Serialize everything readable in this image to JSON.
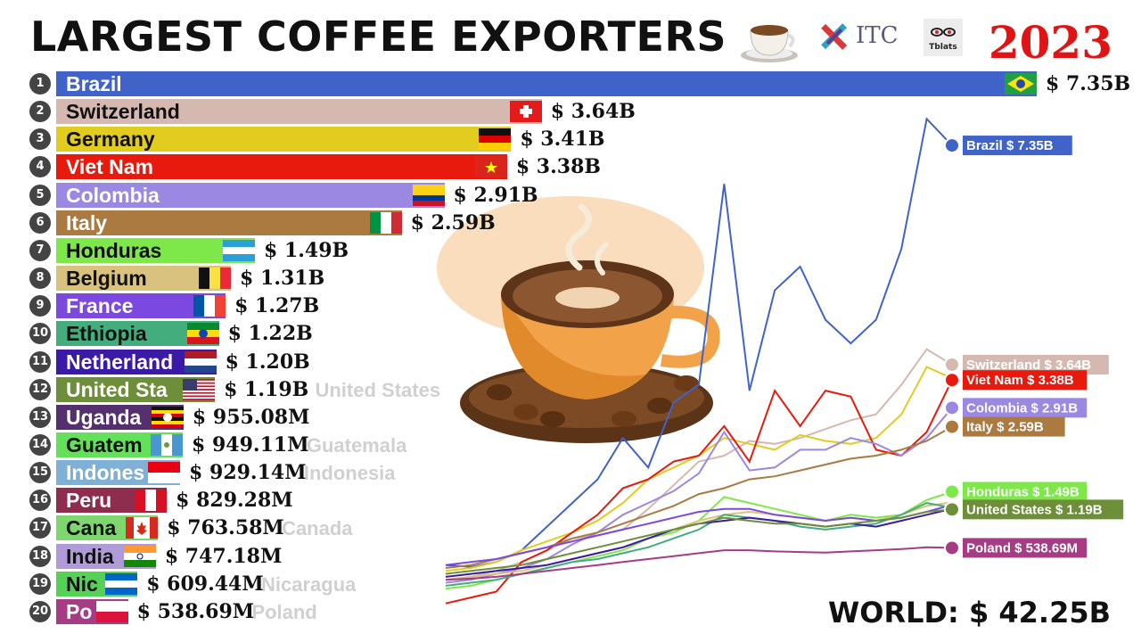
{
  "header": {
    "title": "LARGEST COFFEE EXPORTERS",
    "year": "2023"
  },
  "logos": {
    "itc": "ITC",
    "channel": "Tblats"
  },
  "world_total": "WORLD: $ 42.25B",
  "icons": [
    "coffee-cup-icon",
    "itc-logo-icon",
    "channel-logo-icon"
  ],
  "chart_data": [
    {
      "type": "bar",
      "orientation": "horizontal",
      "title": "LARGEST COFFEE EXPORTERS",
      "categories": [
        "Brazil",
        "Switzerland",
        "Germany",
        "Viet Nam",
        "Colombia",
        "Italy",
        "Honduras",
        "Belgium",
        "France",
        "Ethiopia",
        "Netherland",
        "United Sta",
        "Uganda",
        "Guatem",
        "Indones",
        "Peru",
        "Cana",
        "India",
        "Nic",
        "Po"
      ],
      "values": [
        7.35,
        3.64,
        3.41,
        3.38,
        2.91,
        2.59,
        1.49,
        1.31,
        1.27,
        1.22,
        1.2,
        1.19,
        0.95508,
        0.94911,
        0.92914,
        0.82928,
        0.76358,
        0.74718,
        0.60944,
        0.53869
      ],
      "value_labels": [
        "$ 7.35B",
        "$ 3.64B",
        "$ 3.41B",
        "$ 3.38B",
        "$ 2.91B",
        "$ 2.59B",
        "$ 1.49B",
        "$ 1.31B",
        "$ 1.27B",
        "$ 1.22B",
        "$ 1.20B",
        "$ 1.19B",
        "$ 955.08M",
        "$ 949.11M",
        "$ 929.14M",
        "$ 829.28M",
        "$ 763.58M",
        "$ 747.18M",
        "$ 609.44M",
        "$ 538.69M"
      ],
      "ghost_labels": [
        "",
        "",
        "",
        "",
        "",
        "",
        "",
        "",
        "",
        "",
        "",
        "United States",
        "",
        "Guatemala",
        "Indonesia",
        "",
        "Canada",
        "",
        "Nicaragua",
        "Poland"
      ],
      "colors": [
        "#3f63c9",
        "#d5b8b0",
        "#e2cc1f",
        "#e8190d",
        "#9a88e2",
        "#aa7a40",
        "#7ee84a",
        "#d9c27e",
        "#7b49e0",
        "#43ad7e",
        "#3b1aa8",
        "#6e8f3a",
        "#55306f",
        "#64e05a",
        "#7fb0d6",
        "#8e2d4e",
        "#7ed66f",
        "#b09ad8",
        "#55d255",
        "#a53c84"
      ],
      "text_colors": [
        "#ffffff",
        "#111111",
        "#111111",
        "#ffffff",
        "#ffffff",
        "#ffffff",
        "#111111",
        "#111111",
        "#ffffff",
        "#111111",
        "#ffffff",
        "#ffffff",
        "#ffffff",
        "#111111",
        "#ffffff",
        "#ffffff",
        "#111111",
        "#111111",
        "#111111",
        "#ffffff"
      ],
      "flags": [
        "brazil",
        "switzerland",
        "germany",
        "vietnam",
        "colombia",
        "italy",
        "honduras",
        "belgium",
        "france",
        "ethiopia",
        "netherlands",
        "usa",
        "uganda",
        "guatemala",
        "indonesia",
        "peru",
        "canada",
        "india",
        "nicaragua",
        "poland"
      ],
      "xlim": [
        0,
        7.35
      ],
      "unit": "USD"
    },
    {
      "type": "line",
      "series": [
        {
          "name": "Brazil",
          "values": [
            0.25,
            0.22,
            0.3,
            0.5,
            0.9,
            1.3,
            1.7,
            2.4,
            1.9,
            3.0,
            3.3,
            6.7,
            3.2,
            4.9,
            5.3,
            4.4,
            4.0,
            4.4,
            5.6,
            7.8,
            7.35
          ],
          "color": "#3f63c9"
        },
        {
          "name": "Switzerland",
          "values": [
            0.0,
            0.05,
            0.15,
            0.3,
            0.5,
            0.7,
            0.75,
            0.85,
            1.2,
            1.6,
            2.0,
            2.1,
            2.35,
            2.3,
            2.4,
            2.55,
            2.7,
            2.8,
            3.3,
            3.9,
            3.64
          ],
          "color": "#d5b8b0"
        },
        {
          "name": "Germany",
          "values": [
            0.15,
            0.2,
            0.3,
            0.5,
            0.65,
            0.8,
            1.0,
            1.3,
            1.7,
            1.9,
            2.1,
            2.4,
            2.3,
            2.2,
            2.45,
            2.35,
            2.3,
            2.4,
            2.8,
            3.6,
            3.41
          ],
          "color": "#e2cc1f"
        },
        {
          "name": "Viet Nam",
          "values": [
            -0.4,
            -0.3,
            -0.2,
            0.3,
            0.5,
            0.8,
            1.1,
            1.55,
            1.7,
            2.0,
            2.1,
            2.6,
            2.0,
            3.2,
            2.6,
            3.2,
            3.1,
            2.2,
            2.1,
            2.5,
            3.38
          ],
          "color": "#e8190d"
        },
        {
          "name": "Colombia",
          "values": [
            -0.05,
            0.0,
            0.1,
            0.2,
            0.35,
            0.6,
            0.8,
            1.1,
            1.3,
            1.5,
            1.8,
            2.5,
            1.85,
            1.9,
            2.2,
            2.2,
            2.4,
            2.3,
            2.1,
            2.4,
            2.91
          ],
          "color": "#9a88e2"
        },
        {
          "name": "Italy",
          "values": [
            0.2,
            0.25,
            0.35,
            0.45,
            0.55,
            0.7,
            0.8,
            0.95,
            1.1,
            1.25,
            1.45,
            1.55,
            1.7,
            1.75,
            1.85,
            1.95,
            2.05,
            2.1,
            2.2,
            2.35,
            2.59
          ],
          "color": "#aa7a40"
        },
        {
          "name": "Honduras",
          "values": [
            -0.15,
            -0.1,
            0.0,
            0.1,
            0.2,
            0.3,
            0.4,
            0.5,
            0.7,
            0.8,
            1.0,
            1.4,
            1.3,
            1.2,
            1.1,
            1.0,
            1.1,
            1.05,
            1.1,
            1.35,
            1.49
          ],
          "color": "#7ee84a"
        },
        {
          "name": "Belgium",
          "values": [
            0.0,
            0.05,
            0.1,
            0.15,
            0.25,
            0.35,
            0.45,
            0.55,
            0.7,
            0.85,
            1.0,
            1.1,
            1.15,
            1.1,
            1.05,
            1.0,
            1.05,
            1.0,
            1.1,
            1.25,
            1.31
          ],
          "color": "#d9c27e"
        },
        {
          "name": "France",
          "values": [
            0.25,
            0.3,
            0.35,
            0.45,
            0.55,
            0.65,
            0.75,
            0.85,
            0.95,
            1.05,
            1.15,
            1.2,
            1.2,
            1.1,
            1.05,
            1.0,
            1.05,
            1.0,
            1.05,
            1.15,
            1.27
          ],
          "color": "#7b49e0"
        },
        {
          "name": "Ethiopia",
          "values": [
            -0.1,
            -0.05,
            0.0,
            0.1,
            0.2,
            0.3,
            0.35,
            0.45,
            0.55,
            0.7,
            0.85,
            1.1,
            1.05,
            1.0,
            0.9,
            0.85,
            0.9,
            0.95,
            1.1,
            1.3,
            1.22
          ],
          "color": "#43ad7e"
        },
        {
          "name": "Netherland",
          "values": [
            0.05,
            0.1,
            0.15,
            0.2,
            0.25,
            0.35,
            0.45,
            0.55,
            0.7,
            0.85,
            0.95,
            1.0,
            1.05,
            1.0,
            0.95,
            0.9,
            0.95,
            0.9,
            1.0,
            1.1,
            1.2
          ],
          "color": "#3b1aa8"
        },
        {
          "name": "United Sta",
          "values": [
            0.1,
            0.15,
            0.2,
            0.25,
            0.35,
            0.45,
            0.55,
            0.65,
            0.75,
            0.85,
            0.95,
            1.05,
            1.0,
            0.95,
            0.95,
            0.9,
            0.95,
            1.0,
            1.05,
            1.15,
            1.19
          ],
          "color": "#6e8f3a"
        },
        {
          "name": "Poland",
          "values": [
            0.0,
            0.02,
            0.05,
            0.1,
            0.15,
            0.2,
            0.25,
            0.3,
            0.35,
            0.4,
            0.45,
            0.5,
            0.5,
            0.48,
            0.47,
            0.46,
            0.48,
            0.5,
            0.52,
            0.55,
            0.54
          ],
          "color": "#a53c84"
        }
      ],
      "end_labels": [
        {
          "series": "Brazil",
          "text": "Brazil $ 7.35B"
        },
        {
          "series": "Switzerland",
          "text": "Switzerland $ 3.64B"
        },
        {
          "series": "Viet Nam",
          "text": "Viet Nam $ 3.38B"
        },
        {
          "series": "Colombia",
          "text": "Colombia $ 2.91B"
        },
        {
          "series": "Italy",
          "text": "Italy $ 2.59B"
        },
        {
          "series": "Honduras",
          "text": "Honduras $ 1.49B"
        },
        {
          "series": "United Sta",
          "text": "United States $ 1.19B"
        },
        {
          "series": "Poland",
          "text": "Poland $ 538.69M"
        }
      ],
      "ylim": [
        -0.6,
        8.0
      ],
      "grid": false
    }
  ]
}
